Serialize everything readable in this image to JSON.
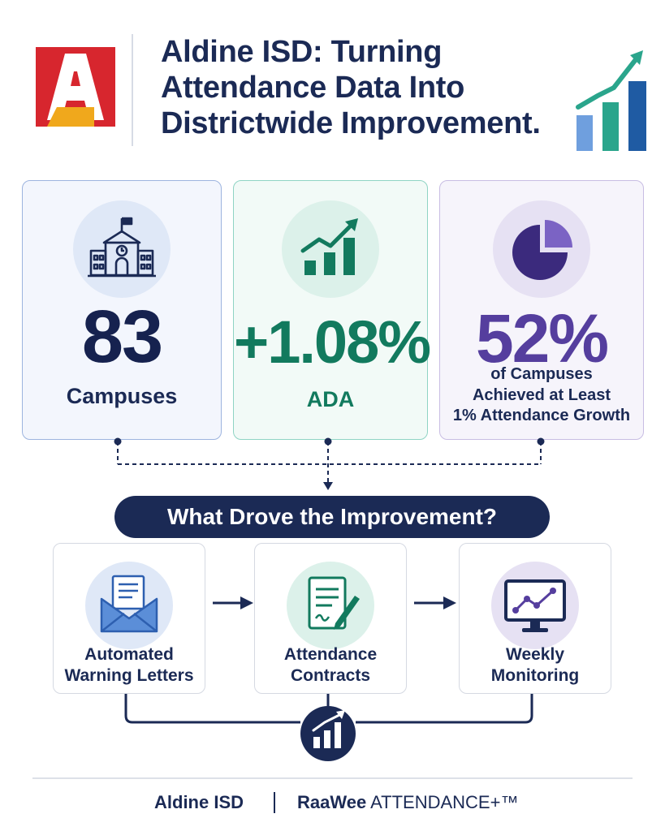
{
  "colors": {
    "navy": "#1b2a55",
    "green": "#127a5e",
    "purple": "#553e9e",
    "logo_red": "#d7262e",
    "logo_gold": "#f0a81c"
  },
  "header": {
    "logo_icon": "aldine-a-logo",
    "title_lines": [
      "Aldine ISD: Turning",
      "Attendance Data Into",
      "Districtwide Improvement."
    ],
    "decor_icon": "growth-chart-icon"
  },
  "stats": [
    {
      "icon": "school-building-icon",
      "value": "83",
      "label": "Campuses"
    },
    {
      "icon": "trend-bars-icon",
      "value": "+1.08%",
      "label": "ADA"
    },
    {
      "icon": "pie-chart-icon",
      "value": "52%",
      "label_lines": [
        "of Campuses",
        "Achieved at Least",
        "1% Attendance Growth"
      ]
    }
  ],
  "banner": {
    "text": "What Drove the Improvement?"
  },
  "drivers": [
    {
      "icon": "envelope-letter-icon",
      "label_lines": [
        "Automated",
        "Warning Letters"
      ]
    },
    {
      "icon": "contract-pen-icon",
      "label_lines": [
        "Attendance",
        "Contracts"
      ]
    },
    {
      "icon": "monitor-chart-icon",
      "label_lines": [
        "Weekly",
        "Monitoring"
      ]
    }
  ],
  "footer": {
    "left": "Aldine ISD",
    "right_bold": "RaaWee",
    "right_rest": " ATTENDANCE+™"
  }
}
